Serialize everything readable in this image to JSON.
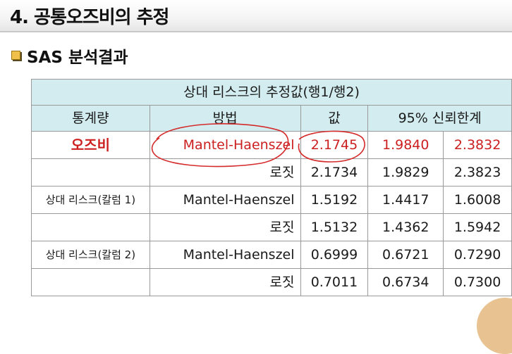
{
  "slide": {
    "title": "4. 공통오즈비의 추정",
    "subtitle": "SAS 분석결과"
  },
  "table": {
    "caption": "상대 리스크의 추정값(행1/행2)",
    "headers": [
      "통계량",
      "방법",
      "값",
      "95% 신뢰한계"
    ],
    "rows": [
      {
        "stat": "오즈비",
        "method": "Mantel-Haenszel",
        "value": "2.1745",
        "lower": "1.9840",
        "upper": "2.3832"
      },
      {
        "stat": "",
        "method": "로짓",
        "value": "2.1734",
        "lower": "1.9829",
        "upper": "2.3823"
      },
      {
        "stat": "상대 리스크(칼럼 1)",
        "method": "Mantel-Haenszel",
        "value": "1.5192",
        "lower": "1.4417",
        "upper": "1.6008"
      },
      {
        "stat": "",
        "method": "로짓",
        "value": "1.5132",
        "lower": "1.4362",
        "upper": "1.5942"
      },
      {
        "stat": "상대 리스크(칼럼 2)",
        "method": "Mantel-Haenszel",
        "value": "0.6999",
        "lower": "0.6721",
        "upper": "0.7290"
      },
      {
        "stat": "",
        "method": "로짓",
        "value": "0.7011",
        "lower": "0.6734",
        "upper": "0.7300"
      }
    ]
  },
  "colors": {
    "header_bg": "#d3ecf0",
    "highlight_text": "#cc1f1f",
    "annotation_ink": "#d42a2a",
    "bullet": "#f0c14a"
  }
}
